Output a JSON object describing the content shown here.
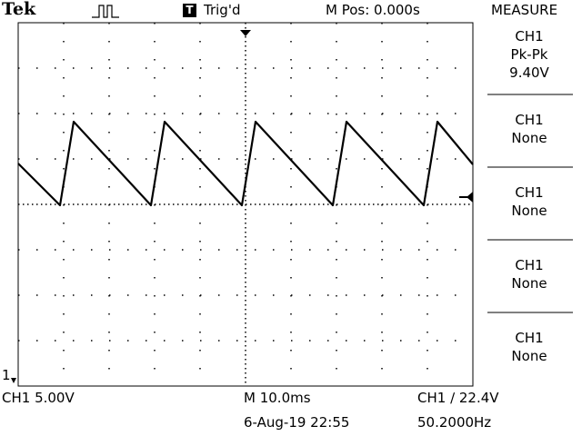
{
  "header": {
    "brand": "Tek",
    "acq_icon": "run-pulse-icon",
    "trigger_badge": "T",
    "trigger_state": "Trig'd",
    "m_pos": "M Pos: 0.000s",
    "menu_title": "MEASURE"
  },
  "measure": [
    {
      "source": "CH1",
      "type": "Pk-Pk",
      "value": "9.40V"
    },
    {
      "source": "CH1",
      "type": "None",
      "value": ""
    },
    {
      "source": "CH1",
      "type": "None",
      "value": ""
    },
    {
      "source": "CH1",
      "type": "None",
      "value": ""
    },
    {
      "source": "CH1",
      "type": "None",
      "value": ""
    }
  ],
  "footer": {
    "ch1_scale": "CH1  5.00V",
    "timebase": "M 10.0ms",
    "trigger": "CH1 ∕ 22.4V",
    "date": "6-Aug-19 22:55",
    "freq": "50.2000Hz"
  },
  "channel_marker": "1",
  "waveform": {
    "shape": "sawtooth",
    "period_divisions": 2,
    "pk_pk_divisions": 1.88,
    "color": "#000000"
  },
  "colors": {
    "background": "#ffffff",
    "graticule": "#000000"
  }
}
